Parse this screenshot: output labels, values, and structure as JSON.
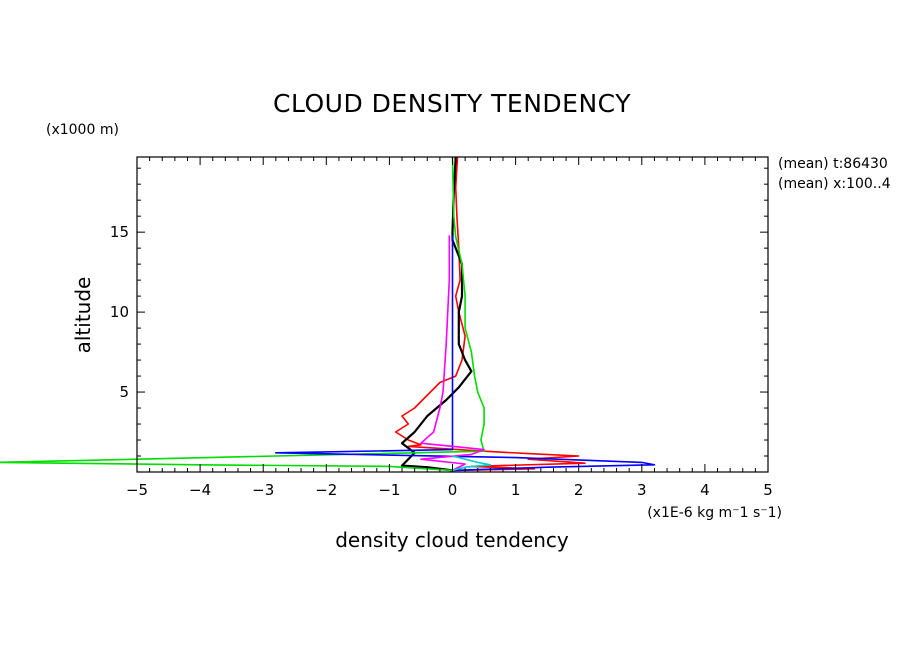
{
  "chart_data": {
    "type": "line",
    "title": "CLOUD DENSITY TENDENCY",
    "xlabel": "density cloud tendency",
    "ylabel": "altitude",
    "x_unit": "(x1E-6 kg m⁻1 s⁻1)",
    "y_unit": "(x1000 m)",
    "xlim": [
      -5,
      5
    ],
    "ylim": [
      0,
      19.7
    ],
    "x_ticks": [
      "−5",
      "−4",
      "−3",
      "−2",
      "−1",
      "0",
      "1",
      "2",
      "3",
      "4",
      "5"
    ],
    "y_ticks": [
      "5",
      "10",
      "15"
    ],
    "annotations": [
      "(mean) t:86430",
      "(mean) x:100..4"
    ],
    "series": [
      {
        "color": "#ff0000",
        "points": [
          [
            0.08,
            19.7
          ],
          [
            0.05,
            17.8
          ],
          [
            0.07,
            16.0
          ],
          [
            0.1,
            14.0
          ],
          [
            0.12,
            12.0
          ],
          [
            0.05,
            11.0
          ],
          [
            0.1,
            10.0
          ],
          [
            0.2,
            8.5
          ],
          [
            0.15,
            7.0
          ],
          [
            0.05,
            6.0
          ],
          [
            -0.2,
            5.6
          ],
          [
            -0.4,
            4.8
          ],
          [
            -0.6,
            4.0
          ],
          [
            -0.8,
            3.5
          ],
          [
            -0.7,
            3.0
          ],
          [
            -0.9,
            2.5
          ],
          [
            -0.7,
            2.0
          ],
          [
            -0.5,
            1.7
          ],
          [
            -0.7,
            1.6
          ],
          [
            0.5,
            1.3
          ],
          [
            1.2,
            1.15
          ],
          [
            2.0,
            1.0
          ],
          [
            1.2,
            0.8
          ],
          [
            2.1,
            0.55
          ],
          [
            0.3,
            0.35
          ],
          [
            1.3,
            0.2
          ],
          [
            0.0,
            0.1
          ]
        ]
      },
      {
        "color": "#000000",
        "points": [
          [
            0.05,
            19.7
          ],
          [
            0.02,
            17.5
          ],
          [
            0.0,
            15.0
          ],
          [
            0.0,
            14.5
          ],
          [
            0.15,
            13.0
          ],
          [
            0.15,
            11.0
          ],
          [
            0.1,
            10.0
          ],
          [
            0.1,
            8.0
          ],
          [
            0.2,
            7.0
          ],
          [
            0.3,
            6.3
          ],
          [
            0.1,
            5.3
          ],
          [
            -0.1,
            4.5
          ],
          [
            -0.4,
            3.5
          ],
          [
            -0.6,
            2.5
          ],
          [
            -0.8,
            1.8
          ],
          [
            -0.6,
            1.2
          ],
          [
            -0.8,
            0.4
          ],
          [
            -0.4,
            0.3
          ],
          [
            0.0,
            0.1
          ]
        ]
      },
      {
        "color": "#00dd00",
        "points": [
          [
            0.0,
            19.7
          ],
          [
            0.02,
            16.0
          ],
          [
            0.05,
            14.7
          ],
          [
            0.15,
            13.0
          ],
          [
            0.2,
            11.0
          ],
          [
            0.2,
            9.0
          ],
          [
            0.3,
            7.5
          ],
          [
            0.35,
            6.0
          ],
          [
            0.4,
            5.0
          ],
          [
            0.5,
            4.0
          ],
          [
            0.5,
            3.0
          ],
          [
            0.45,
            2.0
          ],
          [
            0.5,
            1.3
          ],
          [
            -7.2,
            0.6
          ],
          [
            -4.0,
            0.45
          ],
          [
            -1.0,
            0.35
          ],
          [
            0.0,
            0.1
          ]
        ]
      },
      {
        "color": "#0000ff",
        "points": [
          [
            0.0,
            14.8
          ],
          [
            0.0,
            1.4
          ],
          [
            -2.8,
            1.2
          ],
          [
            1.0,
            0.9
          ],
          [
            3.0,
            0.6
          ],
          [
            3.2,
            0.45
          ],
          [
            1.5,
            0.3
          ],
          [
            0.0,
            0.1
          ]
        ]
      },
      {
        "color": "#ff00ff",
        "points": [
          [
            -0.05,
            14.8
          ],
          [
            -0.05,
            12.0
          ],
          [
            -0.1,
            8.0
          ],
          [
            -0.15,
            5.0
          ],
          [
            -0.2,
            4.0
          ],
          [
            -0.3,
            2.5
          ],
          [
            -0.5,
            1.8
          ],
          [
            0.5,
            1.4
          ],
          [
            0.3,
            1.1
          ],
          [
            -0.5,
            0.8
          ],
          [
            0.2,
            0.5
          ],
          [
            0.0,
            0.1
          ]
        ]
      },
      {
        "color": "#00cccc",
        "points": [
          [
            0.0,
            1.0
          ],
          [
            0.4,
            0.6
          ],
          [
            0.6,
            0.45
          ],
          [
            0.2,
            0.3
          ],
          [
            0.0,
            0.1
          ]
        ]
      }
    ]
  }
}
